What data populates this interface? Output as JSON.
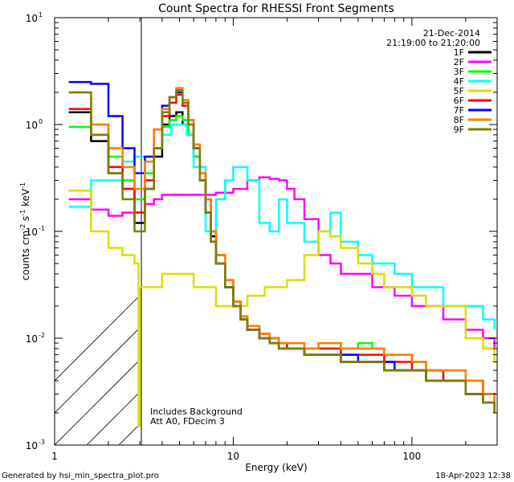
{
  "chart_data": {
    "type": "line",
    "title": "Count Spectra for RHESSI Front Segments",
    "xlabel": "Energy (keV)",
    "ylabel_main": "counts cm",
    "ylabel_sup1": "-2",
    "ylabel_mid": " s",
    "ylabel_sup2": "-1",
    "ylabel_end": " keV",
    "ylabel_sup3": "-1",
    "xscale": "log",
    "yscale": "log",
    "xlim": [
      1,
      300
    ],
    "ylim": [
      0.001,
      10
    ],
    "x_ticks": [
      {
        "value": 1,
        "label": "1"
      },
      {
        "value": 10,
        "label": "10"
      },
      {
        "value": 100,
        "label": "100"
      }
    ],
    "y_ticks": [
      {
        "value": 10,
        "base": "10",
        "exp": "1"
      },
      {
        "value": 1,
        "base": "10",
        "exp": "0"
      },
      {
        "value": 0.1,
        "base": "10",
        "exp": "-1"
      },
      {
        "value": 0.01,
        "base": "10",
        "exp": "-2"
      },
      {
        "value": 0.001,
        "base": "10",
        "exp": "-3"
      }
    ],
    "legend_position": "top-right",
    "legend_header": [
      "21-Dec-2014",
      "21:19:00 to 21:20:00"
    ],
    "annotations": [
      "Includes Background",
      "Att A0, FDecim 3"
    ],
    "hatched_region": {
      "x_range": [
        1,
        3
      ],
      "note": "below lower energy threshold"
    },
    "series": [
      {
        "name": "1F",
        "color": "#000000",
        "x": [
          1.2,
          1.6,
          2.0,
          2.4,
          2.8,
          3.2,
          3.6,
          4.0,
          4.4,
          4.8,
          5.2,
          5.6,
          6.0,
          6.5,
          7.0,
          7.5,
          8.0,
          9.0,
          10,
          11,
          12,
          14,
          16,
          18,
          20,
          25,
          30,
          40,
          50,
          60,
          70,
          80,
          100,
          120,
          150,
          200,
          250,
          290
        ],
        "y": [
          1.3,
          0.7,
          0.35,
          0.25,
          0.12,
          0.25,
          0.5,
          1.0,
          1.2,
          1.3,
          1.0,
          0.8,
          0.5,
          0.3,
          0.15,
          0.09,
          0.05,
          0.03,
          0.02,
          0.015,
          0.012,
          0.01,
          0.009,
          0.008,
          0.008,
          0.007,
          0.007,
          0.006,
          0.006,
          0.006,
          0.005,
          0.005,
          0.005,
          0.004,
          0.004,
          0.003,
          0.0025,
          0.002
        ]
      },
      {
        "name": "2F",
        "color": "#ff00ff",
        "x": [
          1.2,
          1.6,
          2.0,
          2.4,
          2.8,
          3.2,
          3.6,
          4.0,
          5.0,
          6.0,
          8.0,
          10,
          12,
          14,
          16,
          18,
          20,
          22,
          25,
          30,
          35,
          40,
          50,
          60,
          70,
          80,
          100,
          120,
          150,
          200,
          250,
          290
        ],
        "y": [
          0.2,
          0.16,
          0.14,
          0.15,
          0.15,
          0.18,
          0.2,
          0.22,
          0.22,
          0.22,
          0.23,
          0.25,
          0.3,
          0.32,
          0.31,
          0.3,
          0.25,
          0.2,
          0.13,
          0.06,
          0.05,
          0.04,
          0.04,
          0.03,
          0.03,
          0.025,
          0.02,
          0.02,
          0.015,
          0.012,
          0.01,
          0.008
        ]
      },
      {
        "name": "3F",
        "color": "#00ff00",
        "x": [
          1.2,
          1.6,
          2.0,
          2.4,
          2.8,
          3.2,
          3.6,
          4.0,
          4.4,
          4.8,
          5.2,
          5.6,
          6.0,
          6.5,
          7.0,
          7.5,
          8.0,
          9.0,
          10,
          11,
          12,
          14,
          16,
          18,
          20,
          25,
          30,
          40,
          50,
          60,
          70,
          80,
          100,
          120,
          150,
          200,
          250,
          290
        ],
        "y": [
          0.95,
          1.0,
          0.5,
          0.3,
          0.2,
          0.35,
          0.6,
          0.95,
          1.1,
          1.2,
          1.1,
          0.8,
          0.5,
          0.3,
          0.15,
          0.08,
          0.05,
          0.03,
          0.02,
          0.015,
          0.013,
          0.011,
          0.01,
          0.009,
          0.009,
          0.008,
          0.009,
          0.008,
          0.009,
          0.008,
          0.007,
          0.007,
          0.006,
          0.005,
          0.004,
          0.004,
          0.003,
          0.0025
        ]
      },
      {
        "name": "4F",
        "color": "#00ffff",
        "x": [
          1.2,
          1.6,
          2.0,
          2.4,
          2.8,
          3.2,
          3.6,
          4.0,
          4.5,
          5.0,
          5.5,
          6.0,
          7.0,
          8.0,
          9.0,
          10,
          12,
          14,
          16,
          18,
          20,
          25,
          30,
          35,
          40,
          50,
          60,
          70,
          80,
          100,
          120,
          150,
          200,
          250,
          290
        ],
        "y": [
          0.17,
          0.3,
          0.3,
          0.45,
          0.5,
          0.5,
          0.6,
          0.8,
          1.0,
          1.0,
          0.8,
          0.4,
          0.1,
          0.2,
          0.3,
          0.4,
          0.3,
          0.12,
          0.1,
          0.2,
          0.12,
          0.08,
          0.1,
          0.15,
          0.08,
          0.06,
          0.05,
          0.05,
          0.04,
          0.03,
          0.03,
          0.02,
          0.02,
          0.015,
          0.012
        ]
      },
      {
        "name": "5F",
        "color": "#dddd00",
        "x": [
          1.2,
          1.6,
          2.0,
          2.4,
          2.8,
          2.95,
          3.0,
          4.0,
          6.0,
          8.0,
          10,
          12,
          15,
          20,
          25,
          30,
          35,
          40,
          50,
          60,
          70,
          80,
          100,
          120,
          150,
          200,
          250,
          290
        ],
        "y": [
          0.24,
          0.1,
          0.07,
          0.06,
          0.05,
          0.0015,
          0.03,
          0.04,
          0.03,
          0.02,
          0.02,
          0.025,
          0.03,
          0.035,
          0.06,
          0.1,
          0.09,
          0.07,
          0.05,
          0.04,
          0.03,
          0.03,
          0.025,
          0.02,
          0.02,
          0.01,
          0.008,
          0.006
        ]
      },
      {
        "name": "6F",
        "color": "#ff0000",
        "x": [
          1.2,
          1.6,
          2.0,
          2.4,
          2.8,
          3.2,
          3.6,
          4.0,
          4.4,
          4.8,
          5.2,
          5.6,
          6.0,
          6.5,
          7.0,
          7.5,
          8.0,
          9.0,
          10,
          11,
          12,
          14,
          16,
          18,
          20,
          25,
          30,
          40,
          50,
          60,
          70,
          80,
          100,
          120,
          150,
          200,
          250,
          290
        ],
        "y": [
          1.4,
          0.8,
          0.4,
          0.25,
          0.15,
          0.3,
          0.6,
          1.2,
          1.6,
          1.9,
          1.5,
          1.0,
          0.6,
          0.35,
          0.2,
          0.1,
          0.06,
          0.035,
          0.022,
          0.016,
          0.013,
          0.011,
          0.01,
          0.009,
          0.008,
          0.008,
          0.008,
          0.007,
          0.007,
          0.007,
          0.006,
          0.006,
          0.005,
          0.005,
          0.004,
          0.004,
          0.003,
          0.002
        ]
      },
      {
        "name": "7F",
        "color": "#0000ff",
        "x": [
          1.2,
          1.6,
          2.0,
          2.4,
          2.8,
          3.2,
          3.6,
          4.0,
          4.4,
          4.8,
          5.2,
          5.6,
          6.0,
          6.5,
          7.0,
          7.5,
          8.0,
          9.0,
          10,
          11,
          12,
          14,
          16,
          18,
          20,
          25,
          30,
          40,
          50,
          60,
          70,
          80,
          100,
          120,
          150,
          200,
          250,
          290
        ],
        "y": [
          2.5,
          2.4,
          1.2,
          0.6,
          0.35,
          0.5,
          0.9,
          1.5,
          1.8,
          2.0,
          1.6,
          1.1,
          0.6,
          0.3,
          0.15,
          0.08,
          0.05,
          0.03,
          0.02,
          0.015,
          0.012,
          0.01,
          0.009,
          0.008,
          0.008,
          0.007,
          0.007,
          0.007,
          0.006,
          0.006,
          0.006,
          0.005,
          0.005,
          0.004,
          0.004,
          0.003,
          0.003,
          0.002
        ]
      },
      {
        "name": "8F",
        "color": "#ff7f00",
        "x": [
          1.2,
          1.6,
          2.0,
          2.4,
          2.8,
          3.2,
          3.6,
          4.0,
          4.4,
          4.8,
          5.2,
          5.6,
          6.0,
          6.5,
          7.0,
          7.5,
          8.0,
          9.0,
          10,
          11,
          12,
          14,
          16,
          18,
          20,
          25,
          30,
          40,
          50,
          60,
          70,
          80,
          100,
          120,
          150,
          200,
          250,
          290
        ],
        "y": [
          2.0,
          1.0,
          0.6,
          0.4,
          0.25,
          0.45,
          0.9,
          1.4,
          1.8,
          2.2,
          1.7,
          1.1,
          0.65,
          0.35,
          0.2,
          0.1,
          0.06,
          0.035,
          0.022,
          0.016,
          0.013,
          0.011,
          0.01,
          0.009,
          0.009,
          0.008,
          0.009,
          0.008,
          0.008,
          0.008,
          0.007,
          0.007,
          0.006,
          0.005,
          0.005,
          0.004,
          0.003,
          0.0025
        ]
      },
      {
        "name": "9F",
        "color": "#7f7f00",
        "x": [
          1.2,
          1.6,
          2.0,
          2.4,
          2.8,
          3.2,
          3.6,
          4.0,
          4.4,
          4.8,
          5.2,
          5.6,
          6.0,
          6.5,
          7.0,
          7.5,
          8.0,
          9.0,
          10,
          11,
          12,
          14,
          16,
          18,
          20,
          25,
          30,
          40,
          50,
          60,
          70,
          80,
          100,
          120,
          150,
          200,
          250,
          290
        ],
        "y": [
          2.0,
          0.8,
          0.35,
          0.2,
          0.1,
          0.25,
          0.6,
          1.3,
          1.8,
          2.1,
          1.6,
          1.0,
          0.6,
          0.3,
          0.15,
          0.08,
          0.05,
          0.03,
          0.02,
          0.015,
          0.012,
          0.01,
          0.009,
          0.008,
          0.008,
          0.007,
          0.007,
          0.006,
          0.006,
          0.006,
          0.005,
          0.005,
          0.005,
          0.004,
          0.004,
          0.003,
          0.0025,
          0.002
        ]
      }
    ]
  },
  "footer": {
    "generated_by": "Generated by hsi_min_spectra_plot.pro",
    "timestamp": "18-Apr-2023 12:38"
  }
}
